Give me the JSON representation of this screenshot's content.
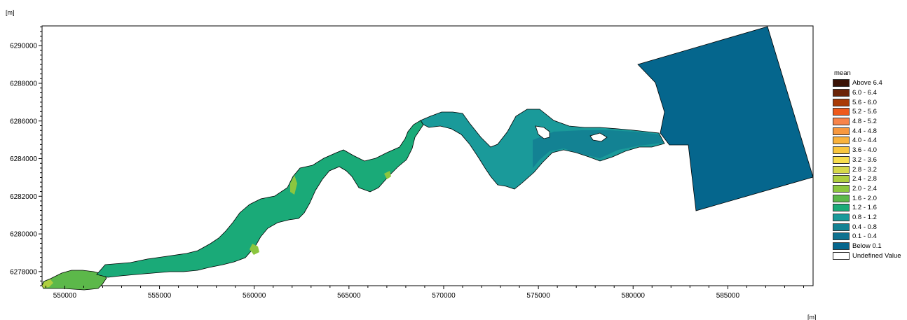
{
  "axes": {
    "y_unit": "[m]",
    "x_unit": "[m]",
    "x_ticks": [
      550000,
      555000,
      560000,
      565000,
      570000,
      575000,
      580000,
      585000
    ],
    "y_ticks": [
      6278000,
      6280000,
      6282000,
      6284000,
      6286000,
      6288000,
      6290000
    ],
    "xlim": [
      548800,
      589500
    ],
    "ylim": [
      6277250,
      6291050
    ]
  },
  "legend": {
    "title": "mean",
    "items": [
      {
        "label": "Above 6.4",
        "color": "#3a1306"
      },
      {
        "label": "6.0 - 6.4",
        "color": "#6b2408"
      },
      {
        "label": "5.6 - 6.0",
        "color": "#a93b06"
      },
      {
        "label": "5.2 - 5.6",
        "color": "#ee5a1c"
      },
      {
        "label": "4.8 - 5.2",
        "color": "#f7844a"
      },
      {
        "label": "4.4 - 4.8",
        "color": "#f7983e"
      },
      {
        "label": "4.0 - 4.4",
        "color": "#f9b23c"
      },
      {
        "label": "3.6 - 4.0",
        "color": "#f9c63e"
      },
      {
        "label": "3.2 - 3.6",
        "color": "#f7dd4c"
      },
      {
        "label": "2.8 - 3.2",
        "color": "#d6d84a"
      },
      {
        "label": "2.4 - 2.8",
        "color": "#aece3f"
      },
      {
        "label": "2.0 - 2.4",
        "color": "#8cc63f"
      },
      {
        "label": "1.6 - 2.0",
        "color": "#5cb84a"
      },
      {
        "label": "1.2 - 1.6",
        "color": "#1aaa78"
      },
      {
        "label": "0.8 - 1.2",
        "color": "#1a9a9a"
      },
      {
        "label": "0.4 - 0.8",
        "color": "#138293"
      },
      {
        "label": "0.1 - 0.4",
        "color": "#0f7290"
      },
      {
        "label": "Below 0.1",
        "color": "#05668d"
      },
      {
        "label": "Undefined Value",
        "color": "#ffffff"
      }
    ]
  },
  "regions": [
    {
      "name": "estuary-lower-segment",
      "class": "1.6 - 2.0",
      "color": "#5cb84a"
    },
    {
      "name": "estuary-middle-segment",
      "class": "1.2 - 1.6",
      "color": "#1aaa78"
    },
    {
      "name": "estuary-upper-segment",
      "class": "0.8 - 1.2",
      "color": "#1a9a9a"
    },
    {
      "name": "estuary-lake-segment",
      "class": "0.4 - 0.8",
      "color": "#138293"
    },
    {
      "name": "offshore-sea-block",
      "class": "Below 0.1",
      "color": "#05668d"
    }
  ]
}
